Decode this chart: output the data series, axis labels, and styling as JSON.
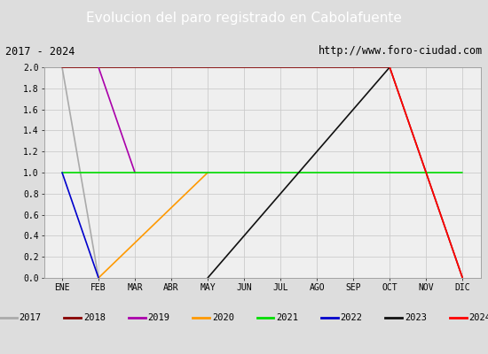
{
  "title": "Evolucion del paro registrado en Cabolafuente",
  "subtitle_left": "2017 - 2024",
  "subtitle_right": "http://www.foro-ciudad.com",
  "x_labels": [
    "ENE",
    "FEB",
    "MAR",
    "ABR",
    "MAY",
    "JUN",
    "JUL",
    "AGO",
    "SEP",
    "OCT",
    "NOV",
    "DIC"
  ],
  "ylim": [
    0.0,
    2.0
  ],
  "yticks": [
    0.0,
    0.2,
    0.4,
    0.6,
    0.8,
    1.0,
    1.2,
    1.4,
    1.6,
    1.8,
    2.0
  ],
  "series": [
    {
      "year": "2017",
      "color": "#aaaaaa",
      "x": [
        0,
        1
      ],
      "y": [
        2,
        0
      ]
    },
    {
      "year": "2018",
      "color": "#880000",
      "x": [
        0,
        9,
        11
      ],
      "y": [
        2,
        2,
        0
      ]
    },
    {
      "year": "2019",
      "color": "#aa00aa",
      "x": [
        1,
        2
      ],
      "y": [
        2,
        1
      ]
    },
    {
      "year": "2020",
      "color": "#ff9900",
      "x": [
        1,
        4
      ],
      "y": [
        0,
        1
      ]
    },
    {
      "year": "2021",
      "color": "#00dd00",
      "x": [
        0,
        11
      ],
      "y": [
        1,
        1
      ]
    },
    {
      "year": "2022",
      "color": "#0000cc",
      "x": [
        0,
        1
      ],
      "y": [
        1,
        0
      ]
    },
    {
      "year": "2023",
      "color": "#111111",
      "x": [
        4,
        9
      ],
      "y": [
        0,
        2
      ]
    },
    {
      "year": "2024",
      "color": "#ff0000",
      "x": [
        9,
        11
      ],
      "y": [
        2,
        0
      ]
    }
  ],
  "title_bg_color": "#4466bb",
  "title_text_color": "#ffffff",
  "subtitle_bg_color": "#e0e0e0",
  "plot_bg_color": "#efefef",
  "legend_bg_color": "#e8e8e8",
  "grid_color": "#cccccc",
  "outer_bg_color": "#dddddd"
}
